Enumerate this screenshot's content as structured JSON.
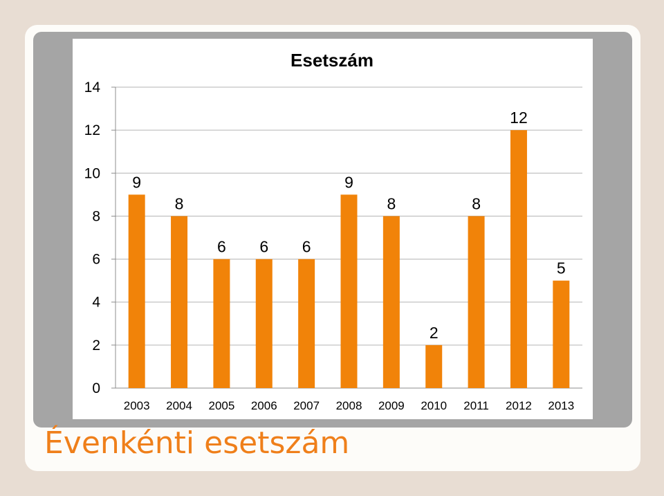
{
  "slide": {
    "title": "Évenkénti esetszám"
  },
  "colors": {
    "bar": "#f18309",
    "accent": "#ef7f1a"
  },
  "chart_data": {
    "type": "bar",
    "title": "Esetszám",
    "categories": [
      "2003",
      "2004",
      "2005",
      "2006",
      "2007",
      "2008",
      "2009",
      "2010",
      "2011",
      "2012",
      "2013"
    ],
    "values": [
      9,
      8,
      6,
      6,
      6,
      9,
      8,
      2,
      8,
      12,
      5
    ],
    "yticks": [
      0,
      2,
      4,
      6,
      8,
      10,
      12,
      14
    ],
    "ylim": [
      0,
      14
    ],
    "data_labels": true,
    "grid": true,
    "legend": false
  }
}
